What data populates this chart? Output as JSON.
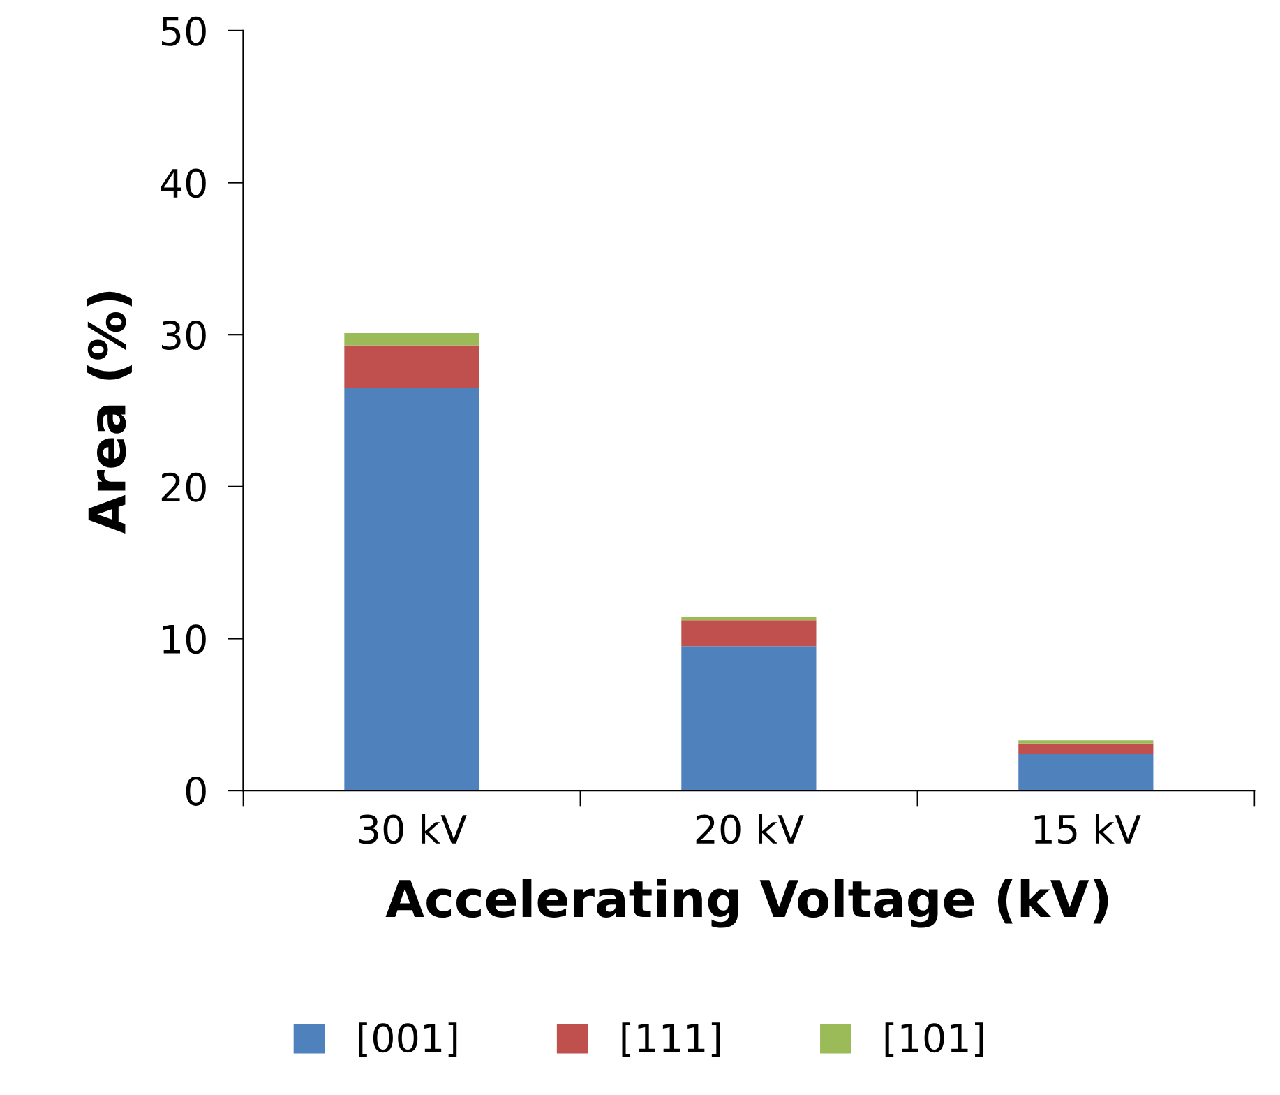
{
  "chart_data": {
    "type": "bar",
    "stacked": true,
    "xlabel": "Accelerating Voltage (kV)",
    "ylabel": "Area (%)",
    "categories": [
      "30 kV",
      "20 kV",
      "15 kV"
    ],
    "series": [
      {
        "name": "[001]",
        "color": "#4f81bd",
        "values": [
          26.5,
          9.5,
          2.4
        ]
      },
      {
        "name": "[111]",
        "color": "#c0504d",
        "values": [
          2.8,
          1.7,
          0.7
        ]
      },
      {
        "name": "[101]",
        "color": "#9bbb59",
        "values": [
          0.8,
          0.2,
          0.2
        ]
      }
    ],
    "ylim": [
      0,
      50
    ],
    "yticks": [
      0,
      10,
      20,
      30,
      40,
      50
    ],
    "grid": false,
    "legend": "bottom"
  }
}
